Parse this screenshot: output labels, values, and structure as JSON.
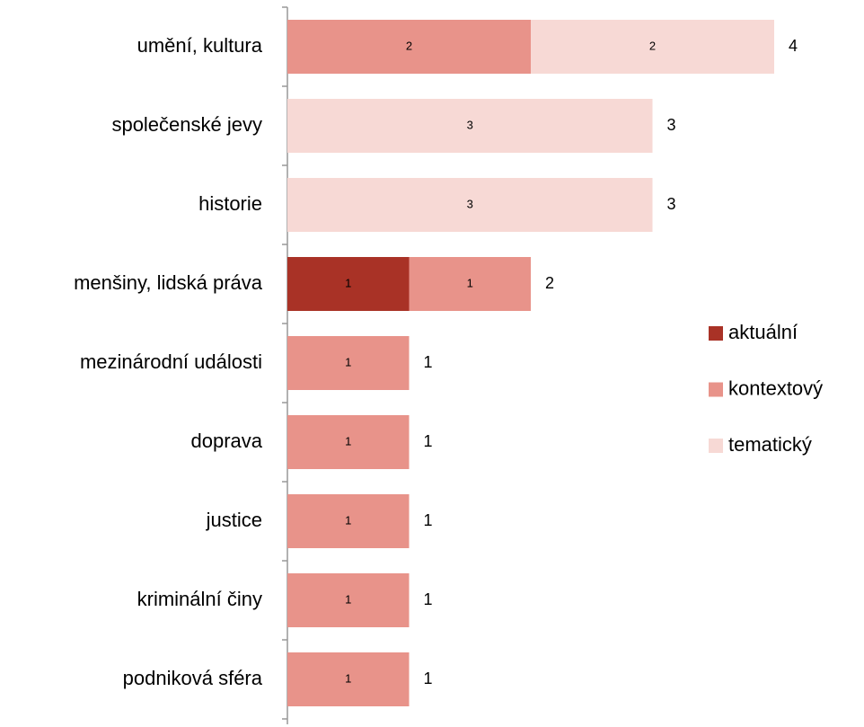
{
  "chart_data": {
    "type": "stacked-barh",
    "categories": [
      "umění, kultura",
      "společenské jevy",
      "historie",
      "menšiny, lidská práva",
      "mezinárodní události",
      "doprava",
      "justice",
      "kriminální činy",
      "podniková sféra"
    ],
    "series": [
      {
        "name": "aktuální",
        "color": "#a93226",
        "values": [
          0,
          0,
          0,
          1,
          0,
          0,
          0,
          0,
          0
        ]
      },
      {
        "name": "kontextový",
        "color": "#e8938a",
        "values": [
          2,
          0,
          0,
          1,
          1,
          1,
          1,
          1,
          1
        ]
      },
      {
        "name": "tematický",
        "color": "#f7d9d5",
        "values": [
          2,
          3,
          3,
          0,
          0,
          0,
          0,
          0,
          0
        ]
      }
    ],
    "totals": [
      4,
      3,
      3,
      2,
      1,
      1,
      1,
      1,
      1
    ],
    "xlim": [
      0,
      4
    ],
    "legend": "right"
  }
}
